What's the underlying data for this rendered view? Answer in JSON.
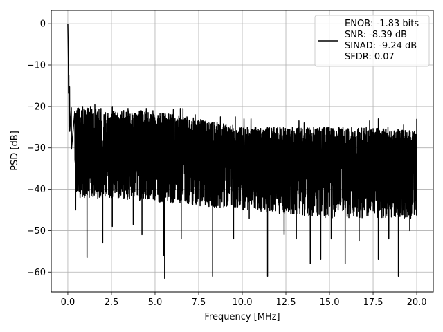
{
  "chart_data": {
    "type": "line",
    "xlabel": "Frequency [MHz]",
    "ylabel": "PSD [dB]",
    "xlim": [
      -0.95,
      20.95
    ],
    "ylim": [
      -64.8,
      3.2
    ],
    "xticks": [
      0.0,
      2.5,
      5.0,
      7.5,
      10.0,
      12.5,
      15.0,
      17.5,
      20.0
    ],
    "xtick_labels": [
      "0.0",
      "2.5",
      "5.0",
      "7.5",
      "10.0",
      "12.5",
      "15.0",
      "17.5",
      "20.0"
    ],
    "yticks": [
      0,
      -10,
      -20,
      -30,
      -40,
      -50,
      -60
    ],
    "ytick_labels": [
      "0",
      "−10",
      "−20",
      "−30",
      "−40",
      "−50",
      "−60"
    ],
    "grid": true,
    "legend_position": "top-right",
    "series": [
      {
        "name": "ENOB: -1.83 bits\nSNR: -8.39 dB\nSINAD: -9.24 dB\nSFDR: 0.07",
        "color": "#000000",
        "description_points": {
          "x_range": [
            0.0,
            20.0
          ],
          "peak": [
            0.0,
            0.0
          ],
          "early_decay": [
            [
              0.03,
              -9
            ],
            [
              0.06,
              -13
            ],
            [
              0.1,
              -16
            ],
            [
              0.2,
              -19
            ],
            [
              0.4,
              -22
            ]
          ],
          "upper_envelope": [
            [
              0.5,
              -20
            ],
            [
              2.5,
              -21
            ],
            [
              5.0,
              -21
            ],
            [
              7.5,
              -23
            ],
            [
              10.0,
              -25
            ],
            [
              12.5,
              -25
            ],
            [
              15.0,
              -25
            ],
            [
              17.5,
              -25
            ],
            [
              20.0,
              -26
            ]
          ],
          "median_level": [
            [
              0.5,
              -30
            ],
            [
              5.0,
              -31
            ],
            [
              10.0,
              -32
            ],
            [
              15.0,
              -33
            ],
            [
              20.0,
              -33
            ]
          ],
          "lower_body": [
            [
              0.5,
              -42
            ],
            [
              5.0,
              -43
            ],
            [
              10.0,
              -45
            ],
            [
              15.0,
              -47
            ],
            [
              20.0,
              -47
            ]
          ],
          "deep_spikes": [
            [
              0.45,
              -45
            ],
            [
              1.1,
              -56.5
            ],
            [
              2.0,
              -53
            ],
            [
              2.55,
              -49
            ],
            [
              3.75,
              -48.5
            ],
            [
              4.25,
              -51
            ],
            [
              5.5,
              -56
            ],
            [
              5.55,
              -61.5
            ],
            [
              6.5,
              -52
            ],
            [
              8.3,
              -61
            ],
            [
              9.5,
              -52
            ],
            [
              10.4,
              -47
            ],
            [
              11.45,
              -61
            ],
            [
              12.4,
              -51
            ],
            [
              13.1,
              -52
            ],
            [
              13.9,
              -58
            ],
            [
              14.5,
              -57
            ],
            [
              15.1,
              -52
            ],
            [
              15.9,
              -58
            ],
            [
              16.7,
              -52.5
            ],
            [
              17.8,
              -57
            ],
            [
              18.4,
              -52
            ],
            [
              18.95,
              -61
            ],
            [
              19.6,
              -50
            ]
          ],
          "tall_spikes": [
            [
              0.85,
              -20
            ],
            [
              1.3,
              -20
            ],
            [
              1.55,
              -19.6
            ],
            [
              1.9,
              -20.5
            ],
            [
              2.55,
              -20
            ],
            [
              3.2,
              -21
            ],
            [
              3.45,
              -20.5
            ],
            [
              4.2,
              -21
            ],
            [
              4.5,
              -20.5
            ],
            [
              6.05,
              -20.8
            ],
            [
              6.45,
              -20.5
            ],
            [
              6.6,
              -20.5
            ],
            [
              7.3,
              -22
            ],
            [
              8.75,
              -22.5
            ],
            [
              9.6,
              -22.5
            ],
            [
              10.1,
              -23
            ],
            [
              10.5,
              -23
            ],
            [
              13.25,
              -23.5
            ],
            [
              13.55,
              -24
            ],
            [
              17.3,
              -23.5
            ],
            [
              17.8,
              -23
            ],
            [
              18.35,
              -25
            ],
            [
              19.25,
              -24.5
            ],
            [
              20.0,
              -23
            ]
          ]
        }
      }
    ]
  }
}
